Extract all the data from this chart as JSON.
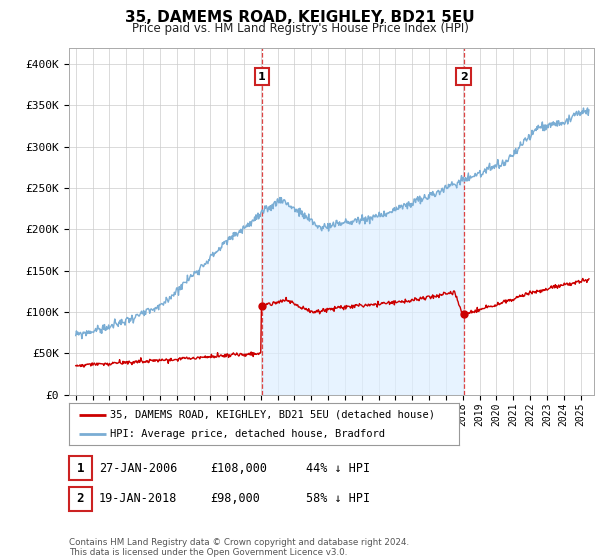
{
  "title": "35, DAMEMS ROAD, KEIGHLEY, BD21 5EU",
  "subtitle": "Price paid vs. HM Land Registry's House Price Index (HPI)",
  "yticks": [
    0,
    50000,
    100000,
    150000,
    200000,
    250000,
    300000,
    350000,
    400000
  ],
  "ytick_labels": [
    "£0",
    "£50K",
    "£100K",
    "£150K",
    "£200K",
    "£250K",
    "£300K",
    "£350K",
    "£400K"
  ],
  "xtick_years": [
    1995,
    1996,
    1997,
    1998,
    1999,
    2000,
    2001,
    2002,
    2003,
    2004,
    2005,
    2006,
    2007,
    2008,
    2009,
    2010,
    2011,
    2012,
    2013,
    2014,
    2015,
    2016,
    2017,
    2018,
    2019,
    2020,
    2021,
    2022,
    2023,
    2024,
    2025
  ],
  "hpi_color": "#7aadd4",
  "hpi_fill_color": "#ddeeff",
  "price_color": "#cc0000",
  "vline_color": "#dd4444",
  "marker1_x": 2006.07,
  "marker1_y": 108000,
  "marker2_x": 2018.05,
  "marker2_y": 98000,
  "legend_entries": [
    "35, DAMEMS ROAD, KEIGHLEY, BD21 5EU (detached house)",
    "HPI: Average price, detached house, Bradford"
  ],
  "table_rows": [
    {
      "num": "1",
      "date": "27-JAN-2006",
      "price": "£108,000",
      "pct": "44% ↓ HPI"
    },
    {
      "num": "2",
      "date": "19-JAN-2018",
      "price": "£98,000",
      "pct": "58% ↓ HPI"
    }
  ],
  "footnote": "Contains HM Land Registry data © Crown copyright and database right 2024.\nThis data is licensed under the Open Government Licence v3.0.",
  "bg_color": "#ffffff"
}
